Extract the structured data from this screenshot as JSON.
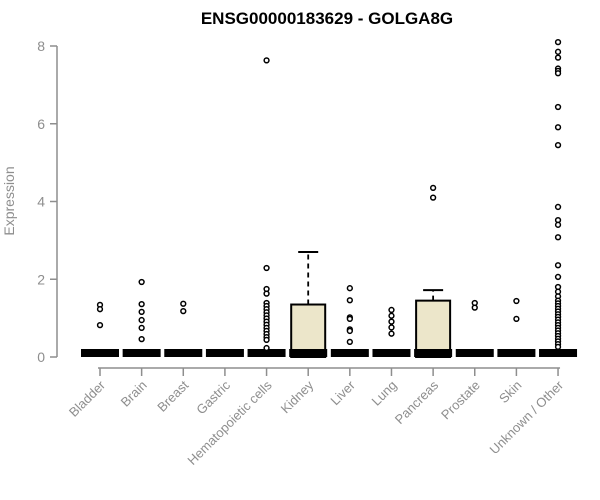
{
  "chart_data": {
    "type": "boxplot",
    "title": "ENSG00000183629 - GOLGA8G",
    "ylabel": "Expression",
    "ylim": [
      0,
      8
    ],
    "yticks": [
      0,
      2,
      4,
      6,
      8
    ],
    "grid": false,
    "categories": [
      "Bladder",
      "Brain",
      "Breast",
      "Gastric",
      "Hematopoietic cells",
      "Kidney",
      "Liver",
      "Lung",
      "Pancreas",
      "Prostate",
      "Skin",
      "Unknown / Other"
    ],
    "boxes": [
      {
        "category": "Bladder",
        "q1": 0,
        "median": 0,
        "q3": 0,
        "whisker_low": 0,
        "whisker_high": 0,
        "outliers": [
          1.34,
          1.23,
          0.82
        ]
      },
      {
        "category": "Brain",
        "q1": 0,
        "median": 0,
        "q3": 0,
        "whisker_low": 0,
        "whisker_high": 0,
        "outliers": [
          1.93,
          1.36,
          1.16,
          0.95,
          0.75,
          0.46
        ]
      },
      {
        "category": "Breast",
        "q1": 0,
        "median": 0,
        "q3": 0,
        "whisker_low": 0,
        "whisker_high": 0,
        "outliers": [
          1.37,
          1.18
        ]
      },
      {
        "category": "Gastric",
        "q1": 0,
        "median": 0,
        "q3": 0,
        "whisker_low": 0,
        "whisker_high": 0,
        "outliers": []
      },
      {
        "category": "Hematopoietic cells",
        "q1": 0,
        "median": 0,
        "q3": 0,
        "whisker_low": 0,
        "whisker_high": 0,
        "outliers": [
          7.63,
          2.29,
          1.75,
          1.63,
          1.39,
          1.31,
          1.23,
          1.15,
          1.07,
          0.99,
          0.91,
          0.83,
          0.75,
          0.67,
          0.59,
          0.51,
          0.44,
          0.23
        ]
      },
      {
        "category": "Kidney",
        "q1": 0,
        "median": 0,
        "q3": 1.35,
        "whisker_low": 0,
        "whisker_high": 2.7,
        "outliers": []
      },
      {
        "category": "Liver",
        "q1": 0,
        "median": 0,
        "q3": 0,
        "whisker_low": 0,
        "whisker_high": 0,
        "outliers": [
          1.77,
          1.46,
          1.02,
          0.98,
          0.71,
          0.67,
          0.39
        ]
      },
      {
        "category": "Lung",
        "q1": 0,
        "median": 0,
        "q3": 0,
        "whisker_low": 0,
        "whisker_high": 0,
        "outliers": [
          1.21,
          1.06,
          0.91,
          0.76,
          0.6
        ]
      },
      {
        "category": "Pancreas",
        "q1": 0,
        "median": 0,
        "q3": 1.45,
        "whisker_low": 0,
        "whisker_high": 1.72,
        "outliers": [
          4.35,
          4.1
        ]
      },
      {
        "category": "Prostate",
        "q1": 0,
        "median": 0,
        "q3": 0,
        "whisker_low": 0,
        "whisker_high": 0,
        "outliers": [
          1.39,
          1.27
        ]
      },
      {
        "category": "Skin",
        "q1": 0,
        "median": 0,
        "q3": 0,
        "whisker_low": 0,
        "whisker_high": 0,
        "outliers": [
          1.44,
          0.98
        ]
      },
      {
        "category": "Unknown / Other",
        "q1": 0,
        "median": 0,
        "q3": 0,
        "whisker_low": 0,
        "whisker_high": 0,
        "outliers": [
          8.1,
          7.85,
          7.7,
          7.42,
          7.36,
          7.3,
          6.43,
          5.91,
          5.45,
          3.86,
          3.52,
          3.4,
          3.08,
          2.36,
          2.06,
          1.8,
          1.68,
          1.56,
          1.45,
          1.38,
          1.31,
          1.24,
          1.17,
          1.1,
          1.03,
          0.96,
          0.89,
          0.82,
          0.75,
          0.68,
          0.61,
          0.54,
          0.47,
          0.4,
          0.33,
          0.26
        ]
      }
    ],
    "colors": {
      "box_fill": "#ece6ca",
      "box_stroke": "#000000",
      "median": "#000000",
      "outlier_stroke": "#000000",
      "axis": "#8e8e8e",
      "tick_label": "#8e8e8e",
      "title": "#000000",
      "background": "#ffffff"
    }
  }
}
